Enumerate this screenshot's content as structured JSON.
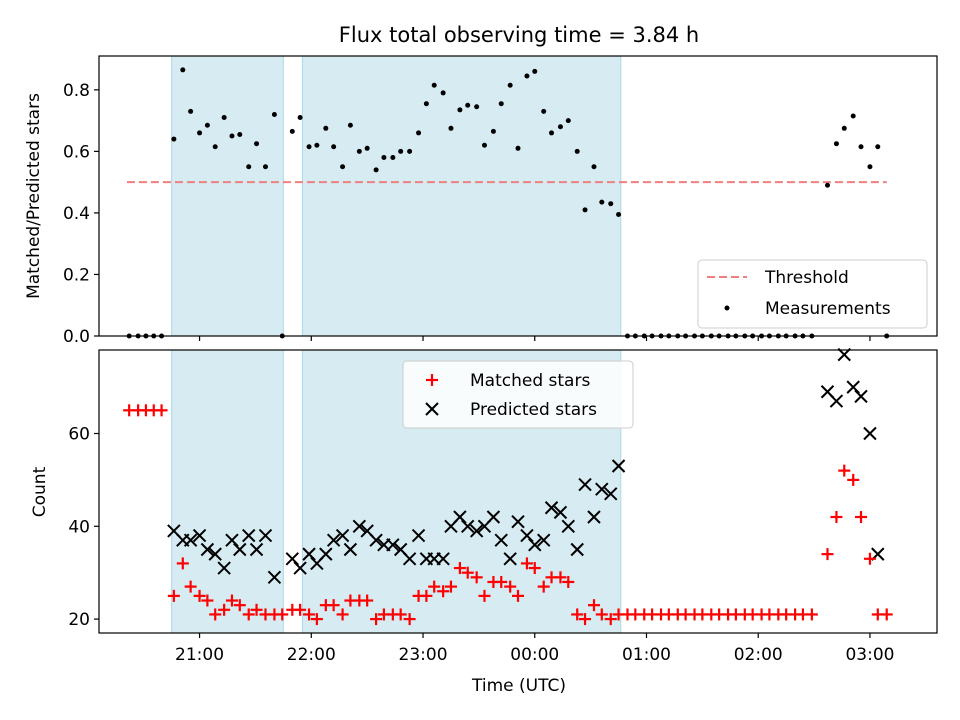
{
  "chart_data": {
    "title": "Flux total observing time = 3.84 h",
    "xlabel": "Time (UTC)",
    "x_unit": "hours after 00:00 UTC (negative = before midnight)",
    "xlim": [
      -3.9,
      3.6
    ],
    "xticks": [
      {
        "x": -3.0,
        "label": "21:00"
      },
      {
        "x": -2.0,
        "label": "22:00"
      },
      {
        "x": -1.0,
        "label": "23:00"
      },
      {
        "x": 0.0,
        "label": "00:00"
      },
      {
        "x": 1.0,
        "label": "01:00"
      },
      {
        "x": 2.0,
        "label": "02:00"
      },
      {
        "x": 3.0,
        "label": "03:00"
      }
    ],
    "shaded_intervals": [
      [
        -3.25,
        -2.25
      ],
      [
        -2.08,
        0.77
      ]
    ],
    "top": {
      "type": "scatter",
      "ylabel": "Matched/Predicted stars",
      "ylim": [
        0,
        0.91
      ],
      "yticks": [
        0.0,
        0.2,
        0.4,
        0.6,
        0.8
      ],
      "threshold": {
        "name": "Threshold",
        "y": 0.5,
        "x_range": [
          -3.65,
          3.15
        ],
        "color": "#f08080"
      },
      "measurements_name": "Measurements",
      "legend": "lower right",
      "measurements": [
        [
          -3.63,
          0.0
        ],
        [
          -3.55,
          0.0
        ],
        [
          -3.48,
          0.0
        ],
        [
          -3.41,
          0.0
        ],
        [
          -3.34,
          0.0
        ],
        [
          -3.23,
          0.64
        ],
        [
          -3.15,
          0.865
        ],
        [
          -3.08,
          0.73
        ],
        [
          -3.0,
          0.66
        ],
        [
          -2.93,
          0.685
        ],
        [
          -2.86,
          0.615
        ],
        [
          -2.78,
          0.71
        ],
        [
          -2.71,
          0.65
        ],
        [
          -2.64,
          0.655
        ],
        [
          -2.56,
          0.55
        ],
        [
          -2.49,
          0.625
        ],
        [
          -2.41,
          0.55
        ],
        [
          -2.33,
          0.72
        ],
        [
          -2.26,
          0.0
        ],
        [
          -2.17,
          0.665
        ],
        [
          -2.1,
          0.71
        ],
        [
          -2.02,
          0.615
        ],
        [
          -1.95,
          0.62
        ],
        [
          -1.87,
          0.675
        ],
        [
          -1.8,
          0.615
        ],
        [
          -1.72,
          0.55
        ],
        [
          -1.65,
          0.685
        ],
        [
          -1.57,
          0.6
        ],
        [
          -1.5,
          0.61
        ],
        [
          -1.42,
          0.54
        ],
        [
          -1.35,
          0.58
        ],
        [
          -1.27,
          0.58
        ],
        [
          -1.2,
          0.6
        ],
        [
          -1.12,
          0.6
        ],
        [
          -1.04,
          0.66
        ],
        [
          -0.97,
          0.755
        ],
        [
          -0.9,
          0.815
        ],
        [
          -0.82,
          0.79
        ],
        [
          -0.75,
          0.675
        ],
        [
          -0.67,
          0.735
        ],
        [
          -0.6,
          0.75
        ],
        [
          -0.52,
          0.745
        ],
        [
          -0.45,
          0.62
        ],
        [
          -0.37,
          0.665
        ],
        [
          -0.3,
          0.755
        ],
        [
          -0.22,
          0.815
        ],
        [
          -0.15,
          0.61
        ],
        [
          -0.07,
          0.845
        ],
        [
          0.0,
          0.86
        ],
        [
          0.08,
          0.73
        ],
        [
          0.15,
          0.66
        ],
        [
          0.23,
          0.68
        ],
        [
          0.3,
          0.7
        ],
        [
          0.38,
          0.6
        ],
        [
          0.45,
          0.41
        ],
        [
          0.53,
          0.55
        ],
        [
          0.6,
          0.435
        ],
        [
          0.68,
          0.43
        ],
        [
          0.75,
          0.395
        ],
        [
          0.83,
          0.0
        ],
        [
          0.9,
          0.0
        ],
        [
          0.98,
          0.0
        ],
        [
          1.05,
          0.0
        ],
        [
          1.13,
          0.0
        ],
        [
          1.2,
          0.0
        ],
        [
          1.28,
          0.0
        ],
        [
          1.35,
          0.0
        ],
        [
          1.43,
          0.0
        ],
        [
          1.5,
          0.0
        ],
        [
          1.58,
          0.0
        ],
        [
          1.65,
          0.0
        ],
        [
          1.73,
          0.0
        ],
        [
          1.8,
          0.0
        ],
        [
          1.88,
          0.0
        ],
        [
          1.95,
          0.0
        ],
        [
          2.03,
          0.0
        ],
        [
          2.1,
          0.0
        ],
        [
          2.18,
          0.0
        ],
        [
          2.25,
          0.0
        ],
        [
          2.33,
          0.0
        ],
        [
          2.4,
          0.0
        ],
        [
          2.48,
          0.0
        ],
        [
          2.62,
          0.49
        ],
        [
          2.7,
          0.625
        ],
        [
          2.77,
          0.675
        ],
        [
          2.85,
          0.715
        ],
        [
          2.92,
          0.615
        ],
        [
          3.0,
          0.55
        ],
        [
          3.07,
          0.615
        ],
        [
          3.15,
          0.0
        ]
      ]
    },
    "bottom": {
      "type": "scatter",
      "ylabel": "Count",
      "ylim": [
        17,
        78
      ],
      "yticks": [
        20,
        40,
        60
      ],
      "legend": "upper center",
      "matched_name": "Matched stars",
      "predicted_name": "Predicted stars",
      "matched_color": "#ff0000",
      "predicted_color": "#000000",
      "matched": [
        [
          -3.63,
          65
        ],
        [
          -3.55,
          65
        ],
        [
          -3.48,
          65
        ],
        [
          -3.41,
          65
        ],
        [
          -3.34,
          65
        ],
        [
          -3.23,
          25
        ],
        [
          -3.15,
          32
        ],
        [
          -3.08,
          27
        ],
        [
          -3.0,
          25
        ],
        [
          -2.93,
          24
        ],
        [
          -2.86,
          21
        ],
        [
          -2.78,
          22
        ],
        [
          -2.71,
          24
        ],
        [
          -2.64,
          23
        ],
        [
          -2.56,
          21
        ],
        [
          -2.49,
          22
        ],
        [
          -2.41,
          21
        ],
        [
          -2.33,
          21
        ],
        [
          -2.26,
          21
        ],
        [
          -2.17,
          22
        ],
        [
          -2.1,
          22
        ],
        [
          -2.02,
          21
        ],
        [
          -1.95,
          20
        ],
        [
          -1.87,
          23
        ],
        [
          -1.8,
          23
        ],
        [
          -1.72,
          21
        ],
        [
          -1.65,
          24
        ],
        [
          -1.57,
          24
        ],
        [
          -1.5,
          24
        ],
        [
          -1.42,
          20
        ],
        [
          -1.35,
          21
        ],
        [
          -1.27,
          21
        ],
        [
          -1.2,
          21
        ],
        [
          -1.12,
          20
        ],
        [
          -1.04,
          25
        ],
        [
          -0.97,
          25
        ],
        [
          -0.9,
          27
        ],
        [
          -0.82,
          26
        ],
        [
          -0.75,
          27
        ],
        [
          -0.67,
          31
        ],
        [
          -0.6,
          30
        ],
        [
          -0.52,
          29
        ],
        [
          -0.45,
          25
        ],
        [
          -0.37,
          28
        ],
        [
          -0.3,
          28
        ],
        [
          -0.22,
          27
        ],
        [
          -0.15,
          25
        ],
        [
          -0.07,
          32
        ],
        [
          0.0,
          31
        ],
        [
          0.08,
          27
        ],
        [
          0.15,
          29
        ],
        [
          0.23,
          29
        ],
        [
          0.3,
          28
        ],
        [
          0.38,
          21
        ],
        [
          0.45,
          20
        ],
        [
          0.53,
          23
        ],
        [
          0.6,
          21
        ],
        [
          0.68,
          20
        ],
        [
          0.75,
          21
        ],
        [
          0.83,
          21
        ],
        [
          0.9,
          21
        ],
        [
          0.98,
          21
        ],
        [
          1.05,
          21
        ],
        [
          1.13,
          21
        ],
        [
          1.2,
          21
        ],
        [
          1.28,
          21
        ],
        [
          1.35,
          21
        ],
        [
          1.43,
          21
        ],
        [
          1.5,
          21
        ],
        [
          1.58,
          21
        ],
        [
          1.65,
          21
        ],
        [
          1.73,
          21
        ],
        [
          1.8,
          21
        ],
        [
          1.88,
          21
        ],
        [
          1.95,
          21
        ],
        [
          2.03,
          21
        ],
        [
          2.1,
          21
        ],
        [
          2.18,
          21
        ],
        [
          2.25,
          21
        ],
        [
          2.33,
          21
        ],
        [
          2.4,
          21
        ],
        [
          2.48,
          21
        ],
        [
          2.62,
          34
        ],
        [
          2.7,
          42
        ],
        [
          2.77,
          52
        ],
        [
          2.85,
          50
        ],
        [
          2.92,
          42
        ],
        [
          3.0,
          33
        ],
        [
          3.07,
          21
        ],
        [
          3.15,
          21
        ]
      ],
      "predicted": [
        [
          -3.23,
          39
        ],
        [
          -3.15,
          37
        ],
        [
          -3.08,
          37
        ],
        [
          -3.0,
          38
        ],
        [
          -2.93,
          35
        ],
        [
          -2.86,
          34
        ],
        [
          -2.78,
          31
        ],
        [
          -2.71,
          37
        ],
        [
          -2.64,
          35
        ],
        [
          -2.56,
          38
        ],
        [
          -2.49,
          35
        ],
        [
          -2.41,
          38
        ],
        [
          -2.33,
          29
        ],
        [
          -2.17,
          33
        ],
        [
          -2.1,
          31
        ],
        [
          -2.02,
          34
        ],
        [
          -1.95,
          32
        ],
        [
          -1.87,
          34
        ],
        [
          -1.8,
          37
        ],
        [
          -1.72,
          38
        ],
        [
          -1.65,
          35
        ],
        [
          -1.57,
          40
        ],
        [
          -1.5,
          39
        ],
        [
          -1.42,
          37
        ],
        [
          -1.35,
          36
        ],
        [
          -1.27,
          36
        ],
        [
          -1.2,
          35
        ],
        [
          -1.12,
          33
        ],
        [
          -1.04,
          38
        ],
        [
          -0.97,
          33
        ],
        [
          -0.9,
          33
        ],
        [
          -0.82,
          33
        ],
        [
          -0.75,
          40
        ],
        [
          -0.67,
          42
        ],
        [
          -0.6,
          40
        ],
        [
          -0.52,
          39
        ],
        [
          -0.45,
          40
        ],
        [
          -0.37,
          42
        ],
        [
          -0.3,
          37
        ],
        [
          -0.22,
          33
        ],
        [
          -0.15,
          41
        ],
        [
          -0.07,
          38
        ],
        [
          0.0,
          36
        ],
        [
          0.08,
          37
        ],
        [
          0.15,
          44
        ],
        [
          0.23,
          43
        ],
        [
          0.3,
          40
        ],
        [
          0.38,
          35
        ],
        [
          0.45,
          49
        ],
        [
          0.53,
          42
        ],
        [
          0.6,
          48
        ],
        [
          0.68,
          47
        ],
        [
          0.75,
          53
        ],
        [
          2.62,
          69
        ],
        [
          2.7,
          67
        ],
        [
          2.77,
          77
        ],
        [
          2.85,
          70
        ],
        [
          2.92,
          68
        ],
        [
          3.0,
          60
        ],
        [
          3.07,
          34
        ]
      ]
    }
  }
}
